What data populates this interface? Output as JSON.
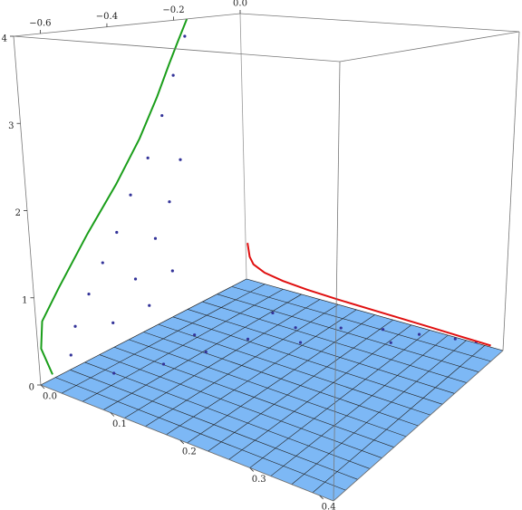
{
  "chart_data": {
    "type": "scatter3d",
    "xlim": [
      0,
      0.42
    ],
    "ylim": [
      -0.68,
      0
    ],
    "zlim": [
      0,
      4
    ],
    "xticks": [
      {
        "value": 0,
        "label": "0.0"
      },
      0.1,
      0.2,
      0.3,
      0.4
    ],
    "yticks": [
      {
        "value": -0.6,
        "label": "−0.6"
      },
      {
        "value": -0.4,
        "label": "−0.4"
      },
      {
        "value": -0.2,
        "label": "−0.2"
      },
      {
        "value": 0,
        "label": "0.0"
      }
    ],
    "zticks": [
      0,
      1,
      2,
      3,
      4
    ],
    "plane_color": "#7db8f5",
    "curves": [
      {
        "color": "#1a9e1a",
        "x": [
          0,
          0,
          0,
          0,
          0,
          0,
          0,
          0,
          0,
          0,
          0
        ],
        "y": [
          -0.64,
          -0.67,
          -0.66,
          -0.6,
          -0.5,
          -0.4,
          -0.32,
          -0.26,
          -0.22,
          -0.19,
          -0.16
        ],
        "z": [
          0.05,
          0.4,
          0.7,
          1.0,
          1.5,
          2.0,
          2.5,
          3.0,
          3.4,
          3.7,
          4.0
        ]
      },
      {
        "color": "#e01010",
        "x": [
          0.003,
          0.006,
          0.012,
          0.03,
          0.06,
          0.1,
          0.15,
          0.2,
          0.25,
          0.3,
          0.35,
          0.4
        ],
        "y": [
          0,
          0,
          0,
          0,
          0,
          0,
          0,
          0,
          0,
          0,
          0,
          0
        ],
        "z": [
          0.55,
          0.35,
          0.25,
          0.17,
          0.12,
          0.09,
          0.07,
          0.06,
          0.05,
          0.04,
          0.03,
          0.02
        ]
      }
    ],
    "points": {
      "color": "#333399",
      "x": [
        0.02,
        0.02,
        0.02,
        0.02,
        0.02,
        0.02,
        0.02,
        0.02,
        0.02,
        0.02,
        0.03,
        0.03,
        0.03,
        0.03,
        0.03,
        0.03,
        0.03,
        0.05,
        0.08,
        0.1,
        0.12,
        0.06,
        0.15,
        0.2,
        0.25,
        0.3,
        0.35,
        0.38,
        0.1,
        0.18,
        0.28
      ],
      "y": [
        -0.62,
        -0.6,
        -0.55,
        -0.5,
        -0.45,
        -0.4,
        -0.34,
        -0.29,
        -0.25,
        -0.21,
        -0.5,
        -0.42,
        -0.35,
        -0.3,
        -0.26,
        -0.38,
        -0.3,
        -0.55,
        -0.45,
        -0.35,
        -0.25,
        -0.3,
        -0.15,
        -0.1,
        -0.06,
        -0.04,
        -0.02,
        -0.01,
        -0.12,
        -0.2,
        -0.1
      ],
      "z": [
        0.3,
        0.6,
        0.9,
        1.2,
        1.5,
        1.9,
        2.3,
        2.8,
        3.3,
        3.8,
        0.5,
        0.9,
        1.3,
        1.7,
        2.2,
        0.5,
        0.8,
        0.05,
        0.05,
        0.05,
        0.05,
        0.05,
        0.05,
        0.05,
        0.05,
        0.05,
        0.05,
        0.05,
        0.05,
        0.05,
        0.05
      ]
    }
  }
}
